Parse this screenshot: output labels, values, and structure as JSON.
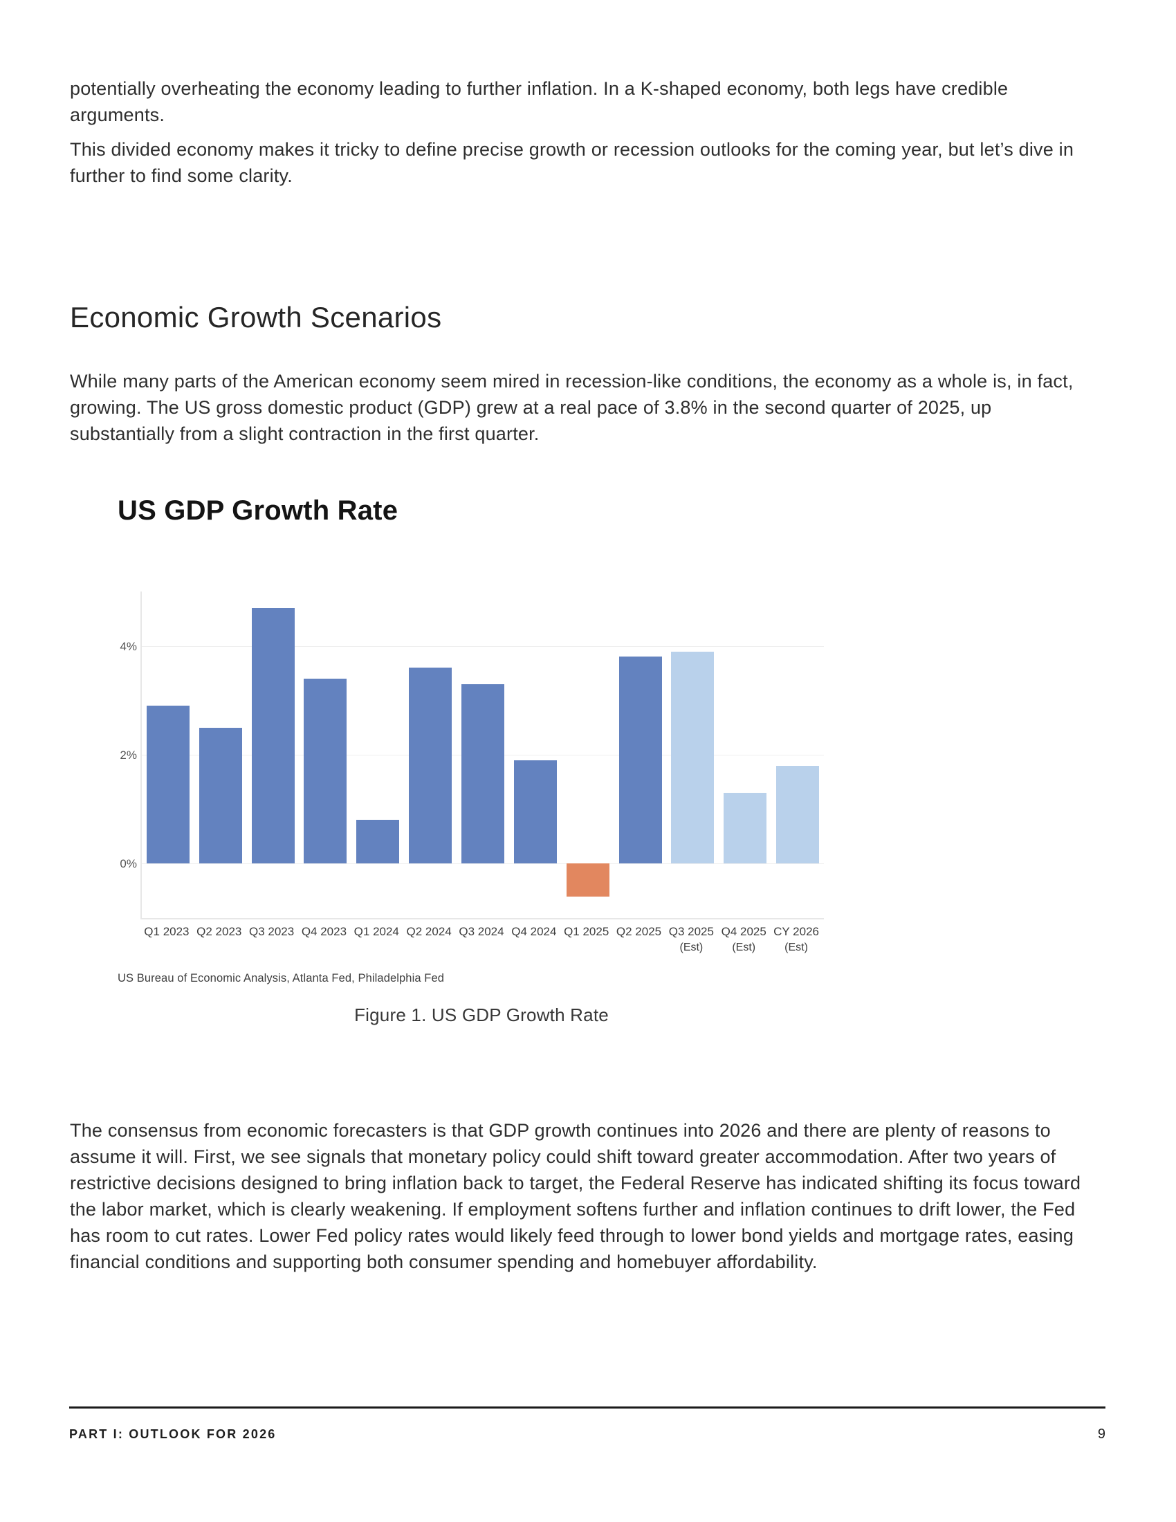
{
  "page": {
    "paragraph1": "potentially overheating the economy leading to further inflation. In a K-shaped economy, both legs have credible arguments.",
    "paragraph2": "This divided economy makes it tricky to define precise growth or recession outlooks for the coming year, but let’s dive in further to find some clarity.",
    "heading": "Economic Growth Scenarios",
    "paragraph3": "While many parts of the American economy seem mired in recession-like conditions, the economy as a whole is, in fact, growing. The US gross domestic product (GDP) grew at a real pace of 3.8% in the second quarter of 2025, up substantially from a slight contraction in the first quarter.",
    "paragraph4": "The consensus from economic forecasters is that GDP growth continues into 2026 and there are plenty of reasons to assume it will. First, we see signals that monetary policy could shift toward greater accommodation. After two years of restrictive decisions designed to bring inflation back to target, the Federal Reserve has indicated shifting its focus toward the labor market, which is clearly weakening. If employment softens further and inflation continues to drift lower, the Fed has room to cut rates. Lower Fed policy rates would likely feed through to lower bond yields and mortgage rates, easing financial conditions and supporting both consumer spending and homebuyer affordability.",
    "figure_caption": "Figure 1. US GDP Growth Rate",
    "footer": {
      "left": "PART I: OUTLOOK FOR 2026",
      "page_number": "9"
    }
  },
  "chart_data": {
    "type": "bar",
    "title": "US GDP Growth Rate",
    "source": "US Bureau of Economic Analysis, Atlanta Fed, Philadelphia Fed",
    "categories": [
      "Q1 2023",
      "Q2 2023",
      "Q3 2023",
      "Q4 2023",
      "Q1 2024",
      "Q2 2024",
      "Q3 2024",
      "Q4 2024",
      "Q1 2025",
      "Q2 2025",
      "Q3 2025",
      "Q4 2025",
      "CY 2026"
    ],
    "sublabels": [
      "",
      "",
      "",
      "",
      "",
      "",
      "",
      "",
      "",
      "",
      "(Est)",
      "(Est)",
      "(Est)"
    ],
    "values": [
      2.9,
      2.5,
      4.7,
      3.4,
      0.8,
      3.6,
      3.3,
      1.9,
      -0.6,
      3.8,
      3.9,
      1.3,
      1.8
    ],
    "bar_styles": [
      "actual",
      "actual",
      "actual",
      "actual",
      "actual",
      "actual",
      "actual",
      "actual",
      "negative",
      "actual",
      "estimate",
      "estimate",
      "estimate"
    ],
    "colors": {
      "actual": "#6382bf",
      "estimate": "#b9d1eb",
      "negative": "#e2875f"
    },
    "xlabel": "",
    "ylabel": "",
    "ylim": [
      -1,
      5
    ],
    "yticks": [
      0,
      2,
      4
    ],
    "ytick_labels": [
      "0%",
      "2%",
      "4%"
    ],
    "grid": true,
    "legend": false
  }
}
